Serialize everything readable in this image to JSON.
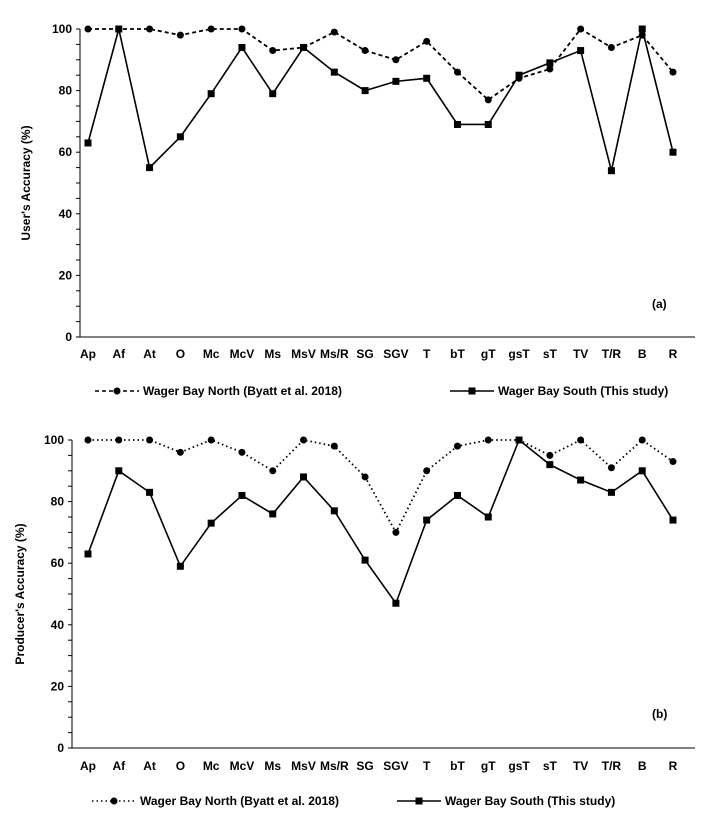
{
  "chart_data": [
    {
      "type": "line",
      "panel_label": "(a)",
      "ylabel": "User's Accuracy (%)",
      "ylim": [
        0,
        100
      ],
      "yticks": [
        0,
        20,
        40,
        60,
        80,
        100
      ],
      "grid": false,
      "legend_placement": "bottom",
      "categories": [
        "Ap",
        "Af",
        "At",
        "O",
        "Mc",
        "McV",
        "Ms",
        "MsV",
        "Ms/R",
        "SG",
        "SGV",
        "T",
        "bT",
        "gT",
        "gsT",
        "sT",
        "TV",
        "T/R",
        "B",
        "R"
      ],
      "series": [
        {
          "name": "Wager Bay North (Byatt et al. 2018)",
          "marker": "circle",
          "line": "dashed",
          "color": "#000000",
          "values": [
            100,
            100,
            100,
            98,
            100,
            100,
            93,
            94,
            99,
            93,
            90,
            96,
            86,
            77,
            84,
            87,
            100,
            94,
            98,
            86
          ]
        },
        {
          "name": "Wager Bay South (This study)",
          "marker": "square",
          "line": "solid",
          "color": "#000000",
          "values": [
            63,
            100,
            55,
            65,
            79,
            94,
            79,
            94,
            86,
            80,
            83,
            84,
            69,
            69,
            85,
            89,
            93,
            54,
            100,
            60
          ]
        }
      ]
    },
    {
      "type": "line",
      "panel_label": "(b)",
      "ylabel": "Producer's Accuracy (%)",
      "ylim": [
        0,
        100
      ],
      "yticks": [
        0,
        20,
        40,
        60,
        80,
        100
      ],
      "grid": false,
      "legend_placement": "bottom",
      "categories": [
        "Ap",
        "Af",
        "At",
        "O",
        "Mc",
        "McV",
        "Ms",
        "MsV",
        "Ms/R",
        "SG",
        "SGV",
        "T",
        "bT",
        "gT",
        "gsT",
        "sT",
        "TV",
        "T/R",
        "B",
        "R"
      ],
      "series": [
        {
          "name": "Wager Bay North (Byatt et al. 2018)",
          "marker": "circle",
          "line": "dotted",
          "color": "#000000",
          "values": [
            100,
            100,
            100,
            96,
            100,
            96,
            90,
            100,
            98,
            88,
            70,
            90,
            98,
            100,
            100,
            95,
            100,
            91,
            100,
            93
          ]
        },
        {
          "name": "Wager Bay South (This study)",
          "marker": "square",
          "line": "solid",
          "color": "#000000",
          "values": [
            63,
            90,
            83,
            59,
            73,
            82,
            76,
            88,
            77,
            61,
            47,
            74,
            82,
            75,
            100,
            92,
            87,
            83,
            90,
            74
          ]
        }
      ]
    }
  ]
}
